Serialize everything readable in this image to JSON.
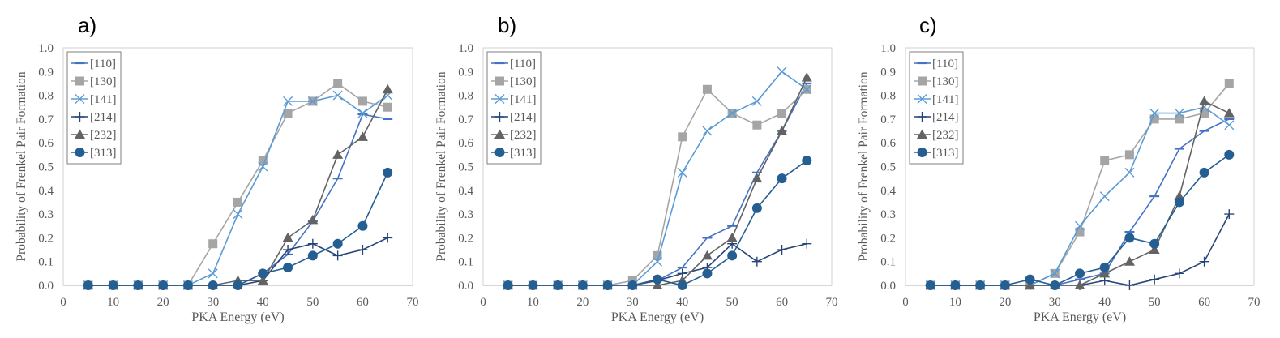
{
  "chart_data": [
    {
      "type": "line",
      "panel_label": "a)",
      "xlabel": "PKA Energy (eV)",
      "ylabel": "Probability of Frenkel Pair Formation",
      "xlim": [
        0,
        70
      ],
      "ylim": [
        0,
        1.0
      ],
      "x_ticks": [
        "0",
        "10",
        "20",
        "30",
        "40",
        "50",
        "60",
        "70"
      ],
      "y_ticks": [
        "0.0",
        "0.1",
        "0.2",
        "0.3",
        "0.4",
        "0.5",
        "0.6",
        "0.7",
        "0.8",
        "0.9",
        "1.0"
      ],
      "grid": false,
      "legend": "top-left",
      "x": [
        5,
        10,
        15,
        20,
        25,
        30,
        35,
        40,
        45,
        50,
        55,
        60,
        65
      ],
      "series": [
        {
          "name": "[110]",
          "color": "#4472c4",
          "marker": "dash",
          "values": [
            0,
            0,
            0,
            0,
            0,
            0,
            0,
            0.05,
            0.13,
            0.27,
            0.45,
            0.72,
            0.7
          ]
        },
        {
          "name": "[130]",
          "color": "#a5a5a5",
          "marker": "square",
          "values": [
            0,
            0,
            0,
            0,
            0,
            0.175,
            0.35,
            0.525,
            0.725,
            0.775,
            0.85,
            0.775,
            0.75
          ]
        },
        {
          "name": "[141]",
          "color": "#5b9bd5",
          "marker": "x",
          "values": [
            0,
            0,
            0,
            0,
            0,
            0.05,
            0.3,
            0.5,
            0.775,
            0.775,
            0.8,
            0.725,
            0.8
          ]
        },
        {
          "name": "[214]",
          "color": "#264478",
          "marker": "plus",
          "values": [
            0,
            0,
            0,
            0,
            0,
            0,
            0,
            0.02,
            0.15,
            0.175,
            0.125,
            0.15,
            0.2
          ]
        },
        {
          "name": "[232]",
          "color": "#636363",
          "marker": "triangle",
          "values": [
            0,
            0,
            0,
            0,
            0,
            0,
            0.02,
            0.02,
            0.2,
            0.275,
            0.55,
            0.625,
            0.825
          ]
        },
        {
          "name": "[313]",
          "color": "#255e91",
          "marker": "circle",
          "values": [
            0,
            0,
            0,
            0,
            0,
            0,
            0,
            0.05,
            0.075,
            0.125,
            0.175,
            0.25,
            0.475
          ]
        }
      ]
    },
    {
      "type": "line",
      "panel_label": "b)",
      "xlabel": "PKA Energy (eV)",
      "ylabel": "Probability of Frenkel Pair Formation",
      "xlim": [
        0,
        70
      ],
      "ylim": [
        0,
        1.0
      ],
      "x_ticks": [
        "0",
        "10",
        "20",
        "30",
        "40",
        "50",
        "60",
        "70"
      ],
      "y_ticks": [
        "0.0",
        "0.1",
        "0.2",
        "0.3",
        "0.4",
        "0.5",
        "0.6",
        "0.7",
        "0.8",
        "0.9",
        "1.0"
      ],
      "grid": false,
      "legend": "top-left",
      "x": [
        5,
        10,
        15,
        20,
        25,
        30,
        35,
        40,
        45,
        50,
        55,
        60,
        65
      ],
      "series": [
        {
          "name": "[110]",
          "color": "#4472c4",
          "marker": "dash",
          "values": [
            0,
            0,
            0,
            0,
            0,
            0,
            0.02,
            0.075,
            0.2,
            0.25,
            0.475,
            0.65,
            0.85
          ]
        },
        {
          "name": "[130]",
          "color": "#a5a5a5",
          "marker": "square",
          "values": [
            0,
            0,
            0,
            0,
            0,
            0.02,
            0.125,
            0.625,
            0.825,
            0.725,
            0.675,
            0.725,
            0.825
          ]
        },
        {
          "name": "[141]",
          "color": "#5b9bd5",
          "marker": "x",
          "values": [
            0,
            0,
            0,
            0,
            0,
            0,
            0.1,
            0.475,
            0.65,
            0.725,
            0.775,
            0.9,
            0.825
          ]
        },
        {
          "name": "[214]",
          "color": "#264478",
          "marker": "plus",
          "values": [
            0,
            0,
            0,
            0,
            0,
            0,
            0.02,
            0.05,
            0.075,
            0.175,
            0.1,
            0.15,
            0.175
          ]
        },
        {
          "name": "[232]",
          "color": "#636363",
          "marker": "triangle",
          "values": [
            0,
            0,
            0,
            0,
            0,
            0,
            0,
            0.02,
            0.125,
            0.2,
            0.45,
            0.65,
            0.875
          ]
        },
        {
          "name": "[313]",
          "color": "#255e91",
          "marker": "circle",
          "values": [
            0,
            0,
            0,
            0,
            0,
            0,
            0.025,
            0,
            0.05,
            0.125,
            0.325,
            0.45,
            0.525
          ]
        }
      ]
    },
    {
      "type": "line",
      "panel_label": "c)",
      "xlabel": "PKA Energy (eV)",
      "ylabel": "Probability of Frenkel Pair Formation",
      "xlim": [
        0,
        70
      ],
      "ylim": [
        0,
        1.0
      ],
      "x_ticks": [
        "0",
        "10",
        "20",
        "30",
        "40",
        "50",
        "60",
        "70"
      ],
      "y_ticks": [
        "0.0",
        "0.1",
        "0.2",
        "0.3",
        "0.4",
        "0.5",
        "0.6",
        "0.7",
        "0.8",
        "0.9",
        "1.0"
      ],
      "grid": false,
      "legend": "top-left",
      "x": [
        5,
        10,
        15,
        20,
        25,
        30,
        35,
        40,
        45,
        50,
        55,
        60,
        65
      ],
      "series": [
        {
          "name": "[110]",
          "color": "#4472c4",
          "marker": "dash",
          "values": [
            0,
            0,
            0,
            0,
            0,
            0,
            0.025,
            0.05,
            0.225,
            0.375,
            0.575,
            0.65,
            0.7
          ]
        },
        {
          "name": "[130]",
          "color": "#a5a5a5",
          "marker": "square",
          "values": [
            0,
            0,
            0,
            0,
            0,
            0.05,
            0.225,
            0.525,
            0.55,
            0.7,
            0.7,
            0.725,
            0.85
          ]
        },
        {
          "name": "[141]",
          "color": "#5b9bd5",
          "marker": "x",
          "values": [
            0,
            0,
            0,
            0,
            0,
            0.05,
            0.25,
            0.375,
            0.475,
            0.725,
            0.725,
            0.75,
            0.675
          ]
        },
        {
          "name": "[214]",
          "color": "#264478",
          "marker": "plus",
          "values": [
            0,
            0,
            0,
            0,
            0,
            0,
            0,
            0.02,
            0,
            0.025,
            0.05,
            0.1,
            0.3
          ]
        },
        {
          "name": "[232]",
          "color": "#636363",
          "marker": "triangle",
          "values": [
            0,
            0,
            0,
            0,
            0,
            0,
            0,
            0.05,
            0.1,
            0.15,
            0.375,
            0.775,
            0.725
          ]
        },
        {
          "name": "[313]",
          "color": "#255e91",
          "marker": "circle",
          "values": [
            0,
            0,
            0,
            0,
            0.025,
            0,
            0.05,
            0.075,
            0.2,
            0.175,
            0.35,
            0.475,
            0.55
          ]
        }
      ]
    }
  ]
}
